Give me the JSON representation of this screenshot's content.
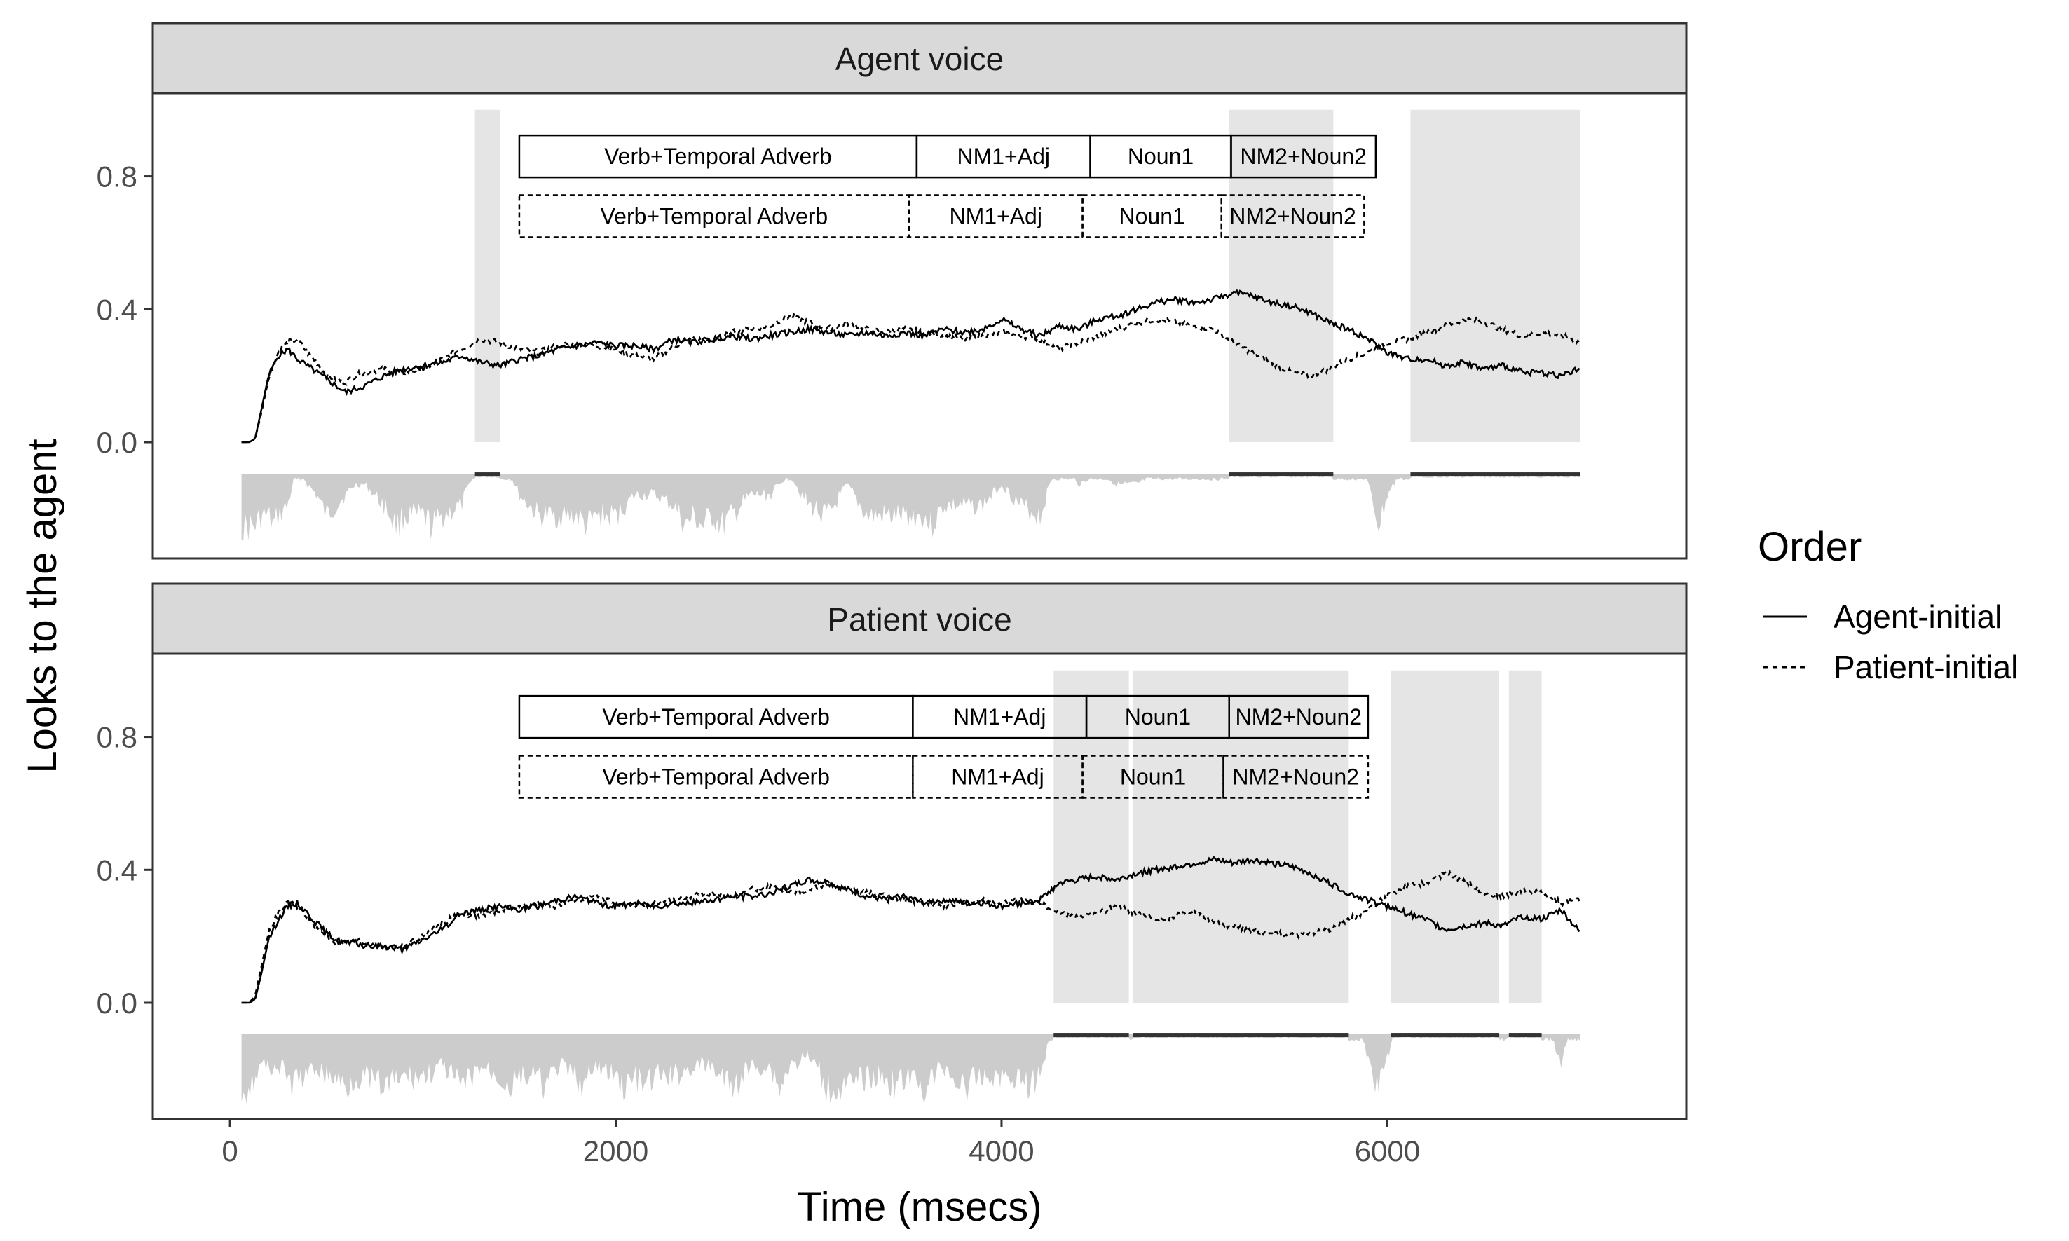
{
  "chart_data": {
    "type": "line",
    "xlabel": "Time (msecs)",
    "ylabel": "Looks to the agent",
    "xlim": [
      -400,
      7550
    ],
    "x_ticks": [
      "0",
      "2000",
      "4000",
      "6000"
    ],
    "x_tick_values": [
      0,
      2000,
      4000,
      6000
    ],
    "y_ticks": [
      "0.0",
      "0.4",
      "0.8"
    ],
    "y_tick_values": [
      0.0,
      0.4,
      0.8
    ],
    "ylim": [
      -0.35,
      1.05
    ],
    "grid": false,
    "legend": {
      "title": "Order",
      "placement": "right",
      "entries": [
        {
          "label": "Agent-initial",
          "linetype": "solid"
        },
        {
          "label": "Patient-initial",
          "linetype": "dashed"
        }
      ]
    },
    "colors": {
      "shade": "#e5e5e5",
      "ribbon": "#cccccc",
      "strip": "#d9d9d9",
      "line": "#000000",
      "frame": "#333333"
    },
    "panels": [
      {
        "strip": "Agent voice",
        "significant_windows": [
          [
            1270,
            1400
          ],
          [
            5180,
            5720
          ],
          [
            6120,
            7000
          ]
        ],
        "regions": [
          {
            "linetype": "solid",
            "y": 0.86,
            "segments": [
              {
                "label": "Verb+Temporal Adverb",
                "start": 1500,
                "end": 3560
              },
              {
                "label": "NM1+Adj",
                "start": 3560,
                "end": 4460
              },
              {
                "label": "Noun1",
                "start": 4460,
                "end": 5190
              },
              {
                "label": "NM2+Noun2",
                "start": 5190,
                "end": 5940
              }
            ]
          },
          {
            "linetype": "dashed",
            "y": 0.68,
            "segments": [
              {
                "label": "Verb+Temporal Adverb",
                "start": 1500,
                "end": 3520
              },
              {
                "label": "NM1+Adj",
                "start": 3520,
                "end": 4420
              },
              {
                "label": "Noun1",
                "start": 4420,
                "end": 5140
              },
              {
                "label": "NM2+Noun2",
                "start": 5140,
                "end": 5880
              }
            ]
          }
        ],
        "series": [
          {
            "name": "Agent-initial",
            "linetype": "solid",
            "x": [
              60,
              100,
              130,
              160,
              200,
              250,
              300,
              350,
              400,
              450,
              500,
              550,
              600,
              650,
              700,
              800,
              900,
              1000,
              1100,
              1200,
              1300,
              1400,
              1500,
              1600,
              1700,
              1800,
              1900,
              2000,
              2100,
              2200,
              2300,
              2400,
              2500,
              2600,
              2700,
              2800,
              2900,
              3000,
              3100,
              3200,
              3300,
              3400,
              3500,
              3600,
              3700,
              3800,
              3900,
              4000,
              4100,
              4200,
              4300,
              4400,
              4500,
              4600,
              4700,
              4800,
              4900,
              5000,
              5100,
              5200,
              5300,
              5400,
              5500,
              5600,
              5700,
              5800,
              5900,
              6000,
              6100,
              6200,
              6300,
              6400,
              6500,
              6600,
              6700,
              6800,
              6900,
              7000
            ],
            "y": [
              0.0,
              0.0,
              0.01,
              0.09,
              0.2,
              0.26,
              0.28,
              0.25,
              0.23,
              0.21,
              0.19,
              0.17,
              0.15,
              0.16,
              0.17,
              0.2,
              0.22,
              0.23,
              0.24,
              0.26,
              0.24,
              0.23,
              0.25,
              0.26,
              0.28,
              0.29,
              0.3,
              0.29,
              0.29,
              0.28,
              0.31,
              0.3,
              0.31,
              0.32,
              0.31,
              0.32,
              0.33,
              0.34,
              0.33,
              0.32,
              0.33,
              0.32,
              0.33,
              0.32,
              0.34,
              0.33,
              0.34,
              0.37,
              0.34,
              0.32,
              0.35,
              0.34,
              0.37,
              0.38,
              0.4,
              0.42,
              0.43,
              0.42,
              0.43,
              0.45,
              0.44,
              0.42,
              0.41,
              0.39,
              0.36,
              0.34,
              0.31,
              0.27,
              0.25,
              0.25,
              0.23,
              0.24,
              0.22,
              0.23,
              0.21,
              0.21,
              0.2,
              0.22
            ]
          },
          {
            "name": "Patient-initial",
            "linetype": "dashed",
            "x": [
              60,
              100,
              130,
              160,
              200,
              250,
              300,
              350,
              400,
              450,
              500,
              550,
              600,
              650,
              700,
              800,
              900,
              1000,
              1100,
              1200,
              1300,
              1400,
              1500,
              1600,
              1700,
              1800,
              1900,
              2000,
              2100,
              2200,
              2300,
              2400,
              2500,
              2600,
              2700,
              2800,
              2900,
              3000,
              3100,
              3200,
              3300,
              3400,
              3500,
              3600,
              3700,
              3800,
              3900,
              4000,
              4100,
              4200,
              4300,
              4400,
              4500,
              4600,
              4700,
              4800,
              4900,
              5000,
              5100,
              5200,
              5300,
              5400,
              5500,
              5600,
              5700,
              5800,
              5900,
              6000,
              6100,
              6200,
              6300,
              6400,
              6500,
              6600,
              6700,
              6800,
              6900,
              7000
            ],
            "y": [
              0.0,
              0.0,
              0.01,
              0.08,
              0.19,
              0.27,
              0.3,
              0.31,
              0.27,
              0.24,
              0.2,
              0.19,
              0.18,
              0.2,
              0.21,
              0.22,
              0.21,
              0.22,
              0.25,
              0.28,
              0.31,
              0.3,
              0.28,
              0.27,
              0.29,
              0.3,
              0.29,
              0.28,
              0.26,
              0.25,
              0.29,
              0.31,
              0.3,
              0.33,
              0.34,
              0.35,
              0.38,
              0.36,
              0.34,
              0.36,
              0.34,
              0.33,
              0.34,
              0.33,
              0.32,
              0.31,
              0.32,
              0.33,
              0.32,
              0.31,
              0.28,
              0.3,
              0.32,
              0.34,
              0.36,
              0.37,
              0.36,
              0.35,
              0.34,
              0.3,
              0.27,
              0.24,
              0.21,
              0.2,
              0.22,
              0.25,
              0.27,
              0.3,
              0.31,
              0.33,
              0.35,
              0.37,
              0.36,
              0.34,
              0.32,
              0.33,
              0.32,
              0.3
            ]
          }
        ]
      },
      {
        "strip": "Patient voice",
        "significant_windows": [
          [
            4270,
            4660
          ],
          [
            4680,
            5800
          ],
          [
            6020,
            6580
          ],
          [
            6630,
            6800
          ]
        ],
        "regions": [
          {
            "linetype": "solid",
            "y": 0.86,
            "segments": [
              {
                "label": "Verb+Temporal Adverb",
                "start": 1500,
                "end": 3540
              },
              {
                "label": "NM1+Adj",
                "start": 3540,
                "end": 4440
              },
              {
                "label": "Noun1",
                "start": 4440,
                "end": 5180
              },
              {
                "label": "NM2+Noun2",
                "start": 5180,
                "end": 5900
              }
            ]
          },
          {
            "linetype": "dashed",
            "y": 0.68,
            "segments": [
              {
                "label": "Verb+Temporal Adverb",
                "start": 1500,
                "end": 3540
              },
              {
                "label": "NM1+Adj",
                "start": 3540,
                "end": 4420
              },
              {
                "label": "Noun1",
                "start": 4420,
                "end": 5150
              },
              {
                "label": "NM2+Noun2",
                "start": 5150,
                "end": 5900
              }
            ]
          }
        ],
        "series": [
          {
            "name": "Agent-initial",
            "linetype": "solid",
            "x": [
              60,
              100,
              130,
              160,
              200,
              250,
              300,
              350,
              400,
              450,
              500,
              550,
              600,
              650,
              700,
              800,
              900,
              1000,
              1100,
              1200,
              1300,
              1400,
              1500,
              1600,
              1700,
              1800,
              1900,
              2000,
              2100,
              2200,
              2300,
              2400,
              2500,
              2600,
              2700,
              2800,
              2900,
              3000,
              3100,
              3200,
              3300,
              3400,
              3500,
              3600,
              3700,
              3800,
              3900,
              4000,
              4100,
              4200,
              4300,
              4400,
              4500,
              4600,
              4700,
              4800,
              4900,
              5000,
              5100,
              5200,
              5300,
              5400,
              5500,
              5600,
              5700,
              5800,
              5900,
              6000,
              6100,
              6200,
              6300,
              6400,
              6500,
              6600,
              6700,
              6800,
              6900,
              7000
            ],
            "y": [
              0.0,
              0.0,
              0.01,
              0.08,
              0.19,
              0.25,
              0.29,
              0.3,
              0.27,
              0.24,
              0.21,
              0.19,
              0.18,
              0.18,
              0.17,
              0.17,
              0.16,
              0.19,
              0.22,
              0.27,
              0.28,
              0.29,
              0.28,
              0.29,
              0.31,
              0.32,
              0.3,
              0.29,
              0.3,
              0.29,
              0.3,
              0.3,
              0.31,
              0.32,
              0.32,
              0.33,
              0.35,
              0.37,
              0.36,
              0.34,
              0.32,
              0.31,
              0.32,
              0.3,
              0.31,
              0.3,
              0.3,
              0.29,
              0.3,
              0.31,
              0.36,
              0.37,
              0.38,
              0.37,
              0.39,
              0.4,
              0.41,
              0.42,
              0.43,
              0.42,
              0.43,
              0.42,
              0.41,
              0.39,
              0.36,
              0.33,
              0.31,
              0.29,
              0.27,
              0.25,
              0.22,
              0.23,
              0.24,
              0.23,
              0.26,
              0.25,
              0.28,
              0.21
            ]
          },
          {
            "name": "Patient-initial",
            "linetype": "dashed",
            "x": [
              60,
              100,
              130,
              160,
              200,
              250,
              300,
              350,
              400,
              450,
              500,
              550,
              600,
              650,
              700,
              800,
              900,
              1000,
              1100,
              1200,
              1300,
              1400,
              1500,
              1600,
              1700,
              1800,
              1900,
              2000,
              2100,
              2200,
              2300,
              2400,
              2500,
              2600,
              2700,
              2800,
              2900,
              3000,
              3100,
              3200,
              3300,
              3400,
              3500,
              3600,
              3700,
              3800,
              3900,
              4000,
              4100,
              4200,
              4300,
              4400,
              4500,
              4600,
              4700,
              4800,
              4900,
              5000,
              5100,
              5200,
              5300,
              5400,
              5500,
              5600,
              5700,
              5800,
              5900,
              6000,
              6100,
              6200,
              6300,
              6400,
              6500,
              6600,
              6700,
              6800,
              6900,
              7000
            ],
            "y": [
              0.0,
              0.0,
              0.02,
              0.1,
              0.21,
              0.27,
              0.3,
              0.29,
              0.26,
              0.22,
              0.2,
              0.18,
              0.18,
              0.19,
              0.18,
              0.17,
              0.17,
              0.2,
              0.24,
              0.27,
              0.26,
              0.28,
              0.29,
              0.3,
              0.29,
              0.31,
              0.32,
              0.3,
              0.29,
              0.3,
              0.31,
              0.32,
              0.33,
              0.32,
              0.34,
              0.35,
              0.33,
              0.34,
              0.36,
              0.34,
              0.33,
              0.32,
              0.31,
              0.3,
              0.29,
              0.3,
              0.31,
              0.3,
              0.31,
              0.3,
              0.27,
              0.26,
              0.27,
              0.29,
              0.27,
              0.25,
              0.26,
              0.28,
              0.24,
              0.23,
              0.22,
              0.21,
              0.2,
              0.21,
              0.22,
              0.25,
              0.28,
              0.32,
              0.35,
              0.36,
              0.39,
              0.37,
              0.33,
              0.32,
              0.34,
              0.33,
              0.3,
              0.31
            ]
          }
        ]
      }
    ]
  }
}
